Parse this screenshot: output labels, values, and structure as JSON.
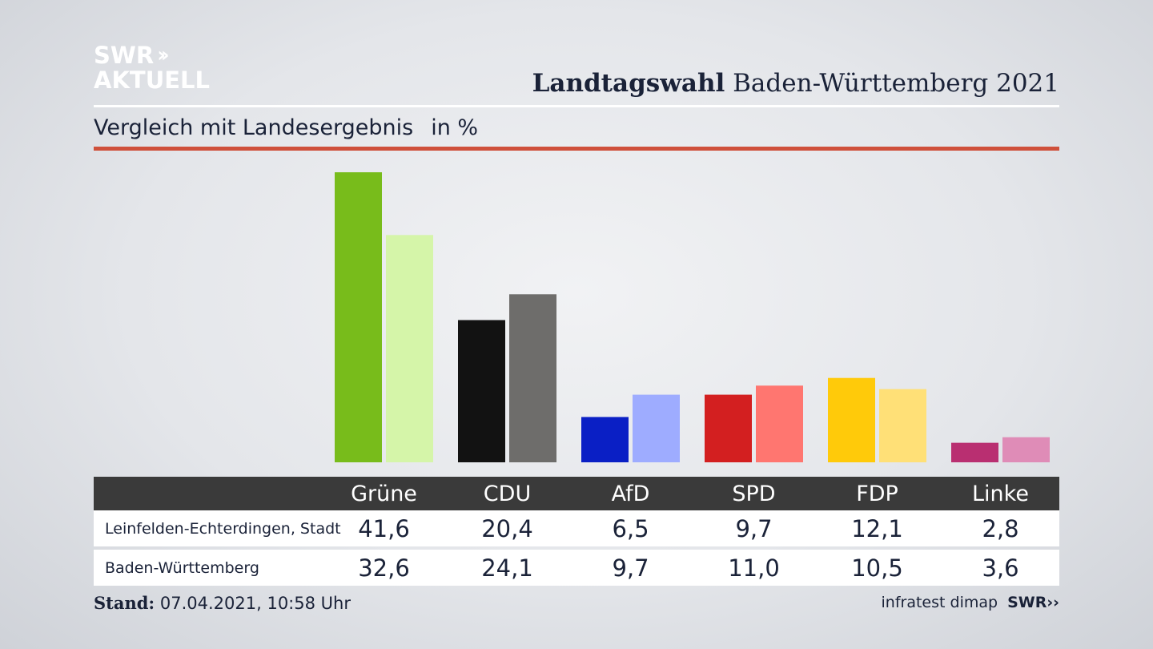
{
  "logo": {
    "line1": "SWR",
    "chevrons": "››",
    "line2": "AKTUELL"
  },
  "title": {
    "bold": "Landtagswahl",
    "rest": "Baden-Württemberg 2021"
  },
  "subtitle": {
    "text": "Vergleich mit Landesergebnis",
    "unit": "in %"
  },
  "colors": {
    "accent_rule": "#cf503b",
    "Grüne": [
      "#78bc1b",
      "#d5f5a9"
    ],
    "CDU": [
      "#121212",
      "#6e6d6b"
    ],
    "AfD": [
      "#0a1fc5",
      "#9eacff"
    ],
    "SPD": [
      "#d31f20",
      "#ff7670"
    ],
    "FDP": [
      "#ffca0a",
      "#ffe077"
    ],
    "Linke": [
      "#b92f71",
      "#df8cb7"
    ]
  },
  "chart_data": {
    "type": "bar",
    "categories": [
      "Grüne",
      "CDU",
      "AfD",
      "SPD",
      "FDP",
      "Linke"
    ],
    "series": [
      {
        "name": "Leinfelden-Echterdingen, Stadt",
        "values": [
          41.6,
          20.4,
          6.5,
          9.7,
          12.1,
          2.8
        ],
        "labels": [
          "41,6",
          "20,4",
          "6,5",
          "9,7",
          "12,1",
          "2,8"
        ]
      },
      {
        "name": "Baden-Württemberg",
        "values": [
          32.6,
          24.1,
          9.7,
          11.0,
          10.5,
          3.6
        ],
        "labels": [
          "32,6",
          "24,1",
          "9,7",
          "11,0",
          "10,5",
          "3,6"
        ]
      }
    ],
    "ylim": [
      0,
      41.6
    ],
    "grid": false,
    "legend": "table-below"
  },
  "footer": {
    "stand_label": "Stand:",
    "stand_value": "07.04.2021, 10:58 Uhr",
    "source": "infratest dimap",
    "source_logo": "SWR››"
  }
}
